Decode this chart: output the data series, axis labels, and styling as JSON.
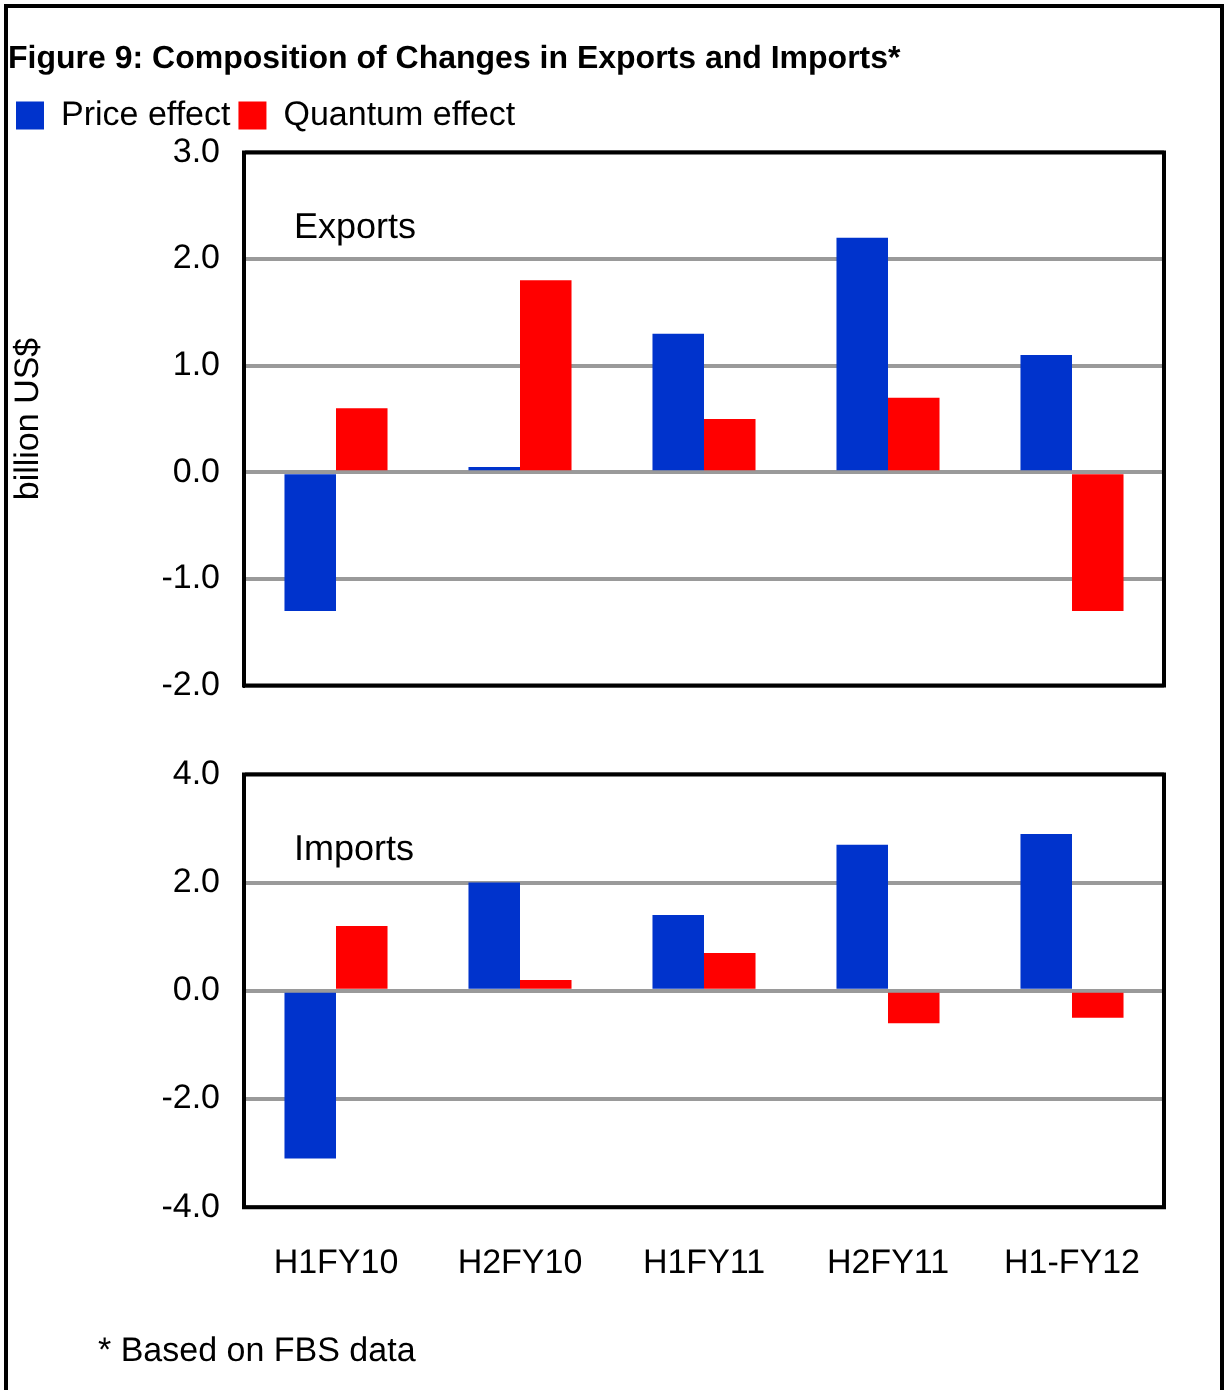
{
  "chart_data": [
    {
      "type": "bar",
      "title": "Figure 9: Composition of Changes in Exports and Imports*",
      "ylabel": "billion US$",
      "categories": [
        null,
        null,
        null,
        null,
        null
      ],
      "series": [
        {
          "name": "Price effect",
          "color": "#0033cc",
          "values": [
            -1.3,
            0.05,
            1.3,
            2.2,
            1.1
          ]
        },
        {
          "name": "Quantum effect",
          "color": "#ff0000",
          "values": [
            0.6,
            1.8,
            0.5,
            0.7,
            -1.3
          ]
        }
      ],
      "ylim": [
        -2,
        3
      ],
      "yticks": [
        {
          "value": -2,
          "label": "-2.0"
        },
        {
          "value": -1,
          "label": "-1.0"
        },
        {
          "value": 0,
          "label": "0.0"
        },
        {
          "value": 1,
          "label": "1.0"
        },
        {
          "value": 2,
          "label": "2.0"
        },
        {
          "value": 3,
          "label": "3.0"
        }
      ],
      "grid": "y",
      "legend": "top left",
      "tick_labels": "y",
      "annotations": [
        "Exports"
      ]
    },
    {
      "type": "bar",
      "categories": [
        "H1FY10",
        "H2FY10",
        "H1FY11",
        "H2FY11",
        "H1-FY12"
      ],
      "series": [
        {
          "color": "#0033cc",
          "values": [
            -3.1,
            2.0,
            1.4,
            2.7,
            2.9
          ]
        },
        {
          "color": "#ff0000",
          "values": [
            1.2,
            0.2,
            0.7,
            -0.6,
            -0.5
          ]
        }
      ],
      "ylim": [
        -4,
        4
      ],
      "yticks": [
        {
          "value": -4,
          "label": "-4.0"
        },
        {
          "value": -2,
          "label": "-2.0"
        },
        {
          "value": 0,
          "label": "0.0"
        },
        {
          "value": 2,
          "label": "2.0"
        },
        {
          "value": 4,
          "label": "4.0"
        }
      ],
      "grid": "y",
      "annotations": [
        "Imports",
        "* Based on FBS data"
      ]
    }
  ]
}
